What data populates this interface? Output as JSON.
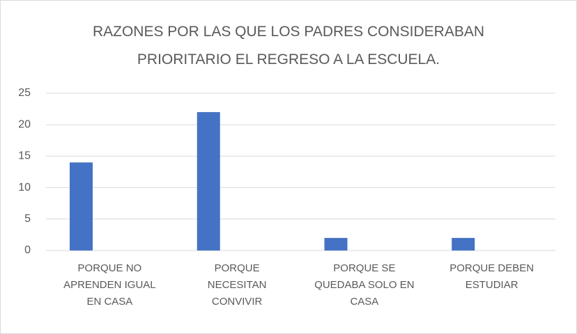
{
  "chart_data": {
    "type": "bar",
    "title": "RAZONES POR LAS QUE LOS PADRES CONSIDERABAN PRIORITARIO EL REGRESO A LA ESCUELA.",
    "categories": [
      "PORQUE NO APRENDEN IGUAL EN CASA",
      "PORQUE NECESITAN CONVIVIR",
      "PORQUE SE QUEDABA SOLO EN CASA",
      "PORQUE DEBEN ESTUDIAR"
    ],
    "values": [
      14,
      22,
      2,
      2
    ],
    "color": "#4472c4",
    "ylim": [
      0,
      25
    ],
    "yticks": [
      0,
      5,
      10,
      15,
      20,
      25
    ],
    "grid": true
  }
}
